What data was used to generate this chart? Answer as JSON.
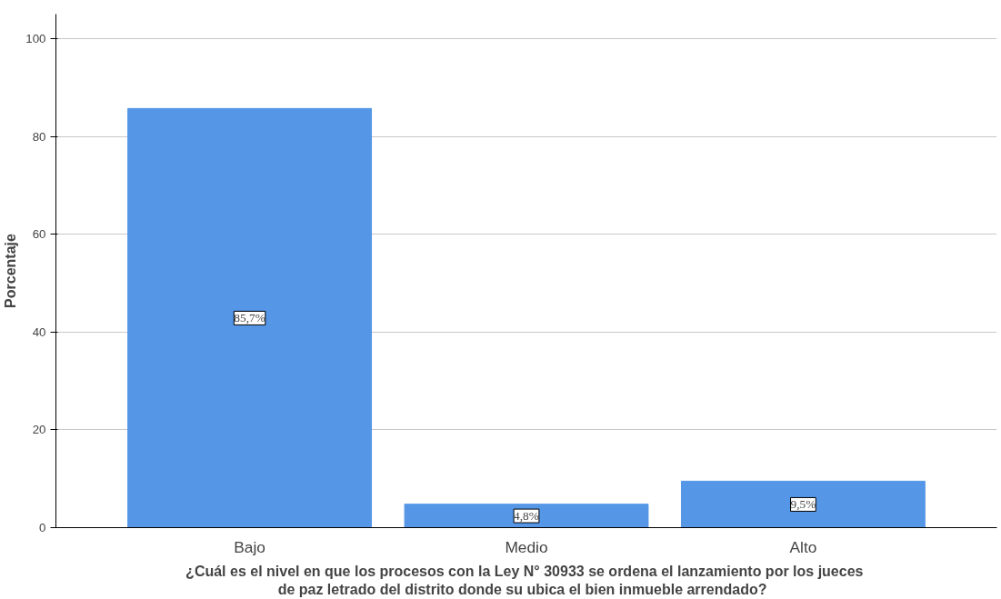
{
  "chart_data": {
    "type": "bar",
    "categories": [
      "Bajo",
      "Medio",
      "Alto"
    ],
    "values": [
      85.7,
      4.8,
      9.5
    ],
    "value_labels": [
      "85,7%",
      "4,8%",
      "9,5%"
    ],
    "color": "#5596e6",
    "ylabel": "Porcentaje",
    "xlabel": "¿Cuál es el nivel en que los procesos con la Ley N°  30933 se ordena el lanzamiento por los jueces\nde  paz letrado del distrito donde su ubica el bien  inmueble arrendado?",
    "ylim": [
      0,
      105
    ],
    "yticks": [
      0,
      20,
      40,
      60,
      80,
      100
    ],
    "grid": "y"
  }
}
